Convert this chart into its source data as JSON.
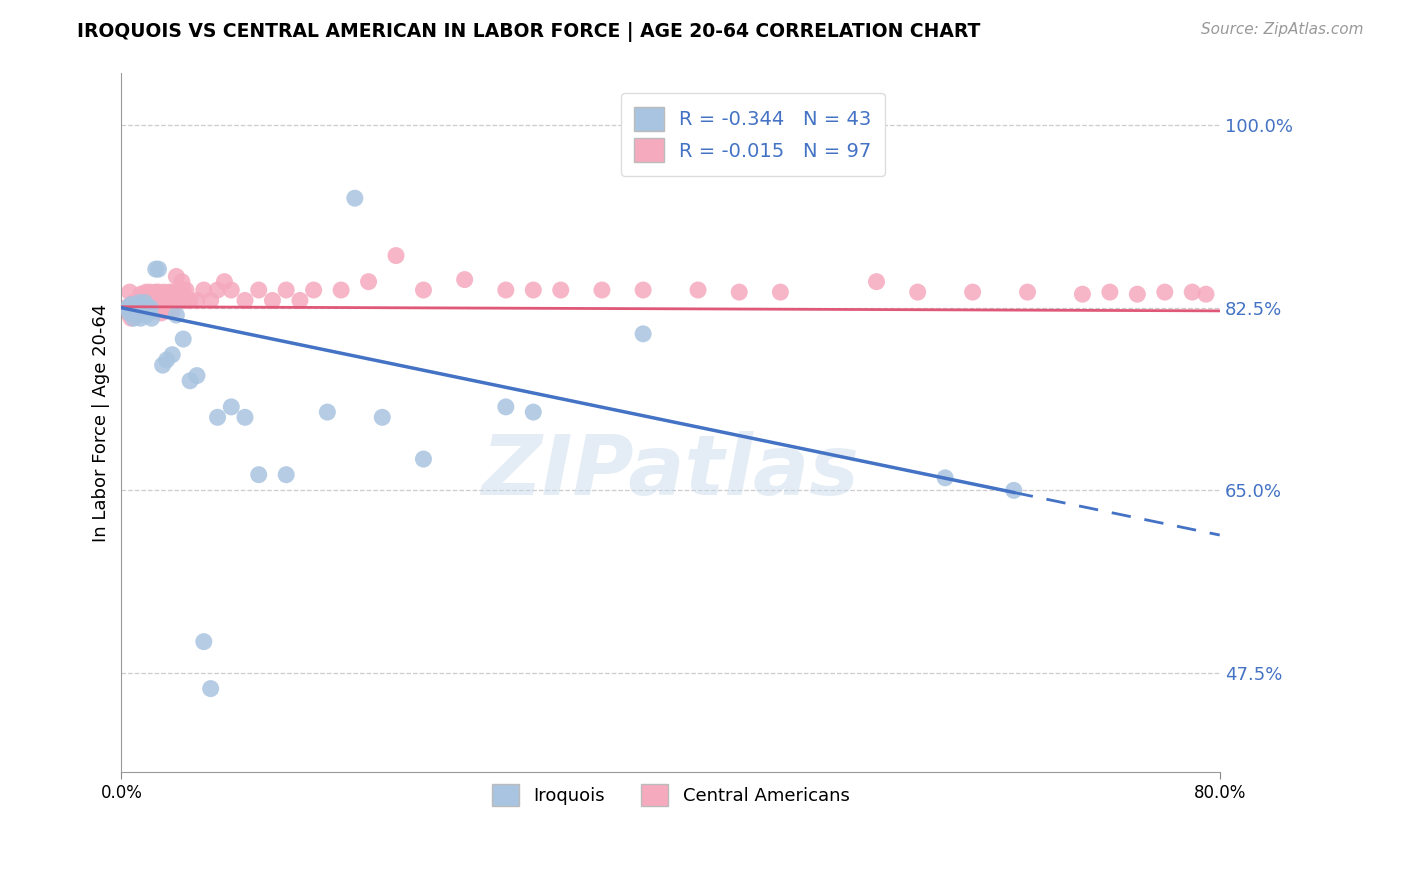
{
  "title": "IROQUOIS VS CENTRAL AMERICAN IN LABOR FORCE | AGE 20-64 CORRELATION CHART",
  "source": "Source: ZipAtlas.com",
  "ylabel": "In Labor Force | Age 20-64",
  "y_tick_vals": [
    0.475,
    0.65,
    0.825,
    1.0
  ],
  "xlim": [
    0.0,
    0.8
  ],
  "ylim": [
    0.38,
    1.05
  ],
  "iroquois_color": "#a8c4e0",
  "central_color": "#f5aabe",
  "iroquois_line_color": "#4472c4",
  "central_line_color": "#e05878",
  "iroquois_R": -0.344,
  "iroquois_N": 43,
  "central_R": -0.015,
  "central_N": 97,
  "watermark": "ZIPatlas",
  "legend_label_iroquois": "Iroquois",
  "legend_label_central": "Central Americans",
  "iroquois_line_x0": 0.0,
  "iroquois_line_y0": 0.825,
  "iroquois_line_x1": 0.65,
  "iroquois_line_y1": 0.648,
  "central_line_x0": 0.0,
  "central_line_y0": 0.826,
  "central_line_x1": 0.8,
  "central_line_y1": 0.822,
  "iroquois_x": [
    0.005,
    0.006,
    0.007,
    0.008,
    0.009,
    0.01,
    0.011,
    0.012,
    0.013,
    0.014,
    0.015,
    0.016,
    0.017,
    0.018,
    0.019,
    0.02,
    0.021,
    0.022,
    0.025,
    0.027,
    0.03,
    0.033,
    0.037,
    0.04,
    0.045,
    0.05,
    0.055,
    0.06,
    0.065,
    0.07,
    0.08,
    0.09,
    0.1,
    0.12,
    0.15,
    0.17,
    0.19,
    0.22,
    0.28,
    0.3,
    0.38,
    0.6,
    0.65
  ],
  "iroquois_y": [
    0.825,
    0.82,
    0.828,
    0.82,
    0.815,
    0.825,
    0.82,
    0.825,
    0.83,
    0.815,
    0.82,
    0.825,
    0.83,
    0.818,
    0.825,
    0.82,
    0.825,
    0.815,
    0.862,
    0.862,
    0.77,
    0.775,
    0.78,
    0.818,
    0.795,
    0.755,
    0.76,
    0.505,
    0.46,
    0.72,
    0.73,
    0.72,
    0.665,
    0.665,
    0.725,
    0.93,
    0.72,
    0.68,
    0.73,
    0.725,
    0.8,
    0.662,
    0.65
  ],
  "central_x": [
    0.003,
    0.005,
    0.006,
    0.007,
    0.008,
    0.009,
    0.01,
    0.011,
    0.012,
    0.013,
    0.014,
    0.015,
    0.016,
    0.017,
    0.018,
    0.019,
    0.02,
    0.021,
    0.022,
    0.023,
    0.024,
    0.025,
    0.026,
    0.027,
    0.028,
    0.029,
    0.03,
    0.031,
    0.032,
    0.033,
    0.035,
    0.036,
    0.037,
    0.038,
    0.04,
    0.041,
    0.042,
    0.043,
    0.044,
    0.045,
    0.047,
    0.048,
    0.05,
    0.055,
    0.06,
    0.065,
    0.07,
    0.075,
    0.08,
    0.09,
    0.1,
    0.11,
    0.12,
    0.13,
    0.14,
    0.16,
    0.18,
    0.2,
    0.22,
    0.25,
    0.28,
    0.3,
    0.32,
    0.35,
    0.38,
    0.42,
    0.45,
    0.48,
    0.55,
    0.58,
    0.62,
    0.66,
    0.7,
    0.72,
    0.74,
    0.76,
    0.78,
    0.79
  ],
  "central_y": [
    0.825,
    0.82,
    0.84,
    0.815,
    0.825,
    0.83,
    0.82,
    0.825,
    0.83,
    0.82,
    0.838,
    0.83,
    0.825,
    0.835,
    0.84,
    0.828,
    0.832,
    0.84,
    0.832,
    0.83,
    0.822,
    0.84,
    0.83,
    0.84,
    0.832,
    0.82,
    0.832,
    0.84,
    0.832,
    0.822,
    0.84,
    0.832,
    0.822,
    0.84,
    0.855,
    0.832,
    0.84,
    0.832,
    0.85,
    0.842,
    0.842,
    0.832,
    0.832,
    0.832,
    0.842,
    0.832,
    0.842,
    0.85,
    0.842,
    0.832,
    0.842,
    0.832,
    0.842,
    0.832,
    0.842,
    0.842,
    0.85,
    0.875,
    0.842,
    0.852,
    0.842,
    0.842,
    0.842,
    0.842,
    0.842,
    0.842,
    0.84,
    0.84,
    0.85,
    0.84,
    0.84,
    0.84,
    0.838,
    0.84,
    0.838,
    0.84,
    0.84,
    0.838
  ]
}
